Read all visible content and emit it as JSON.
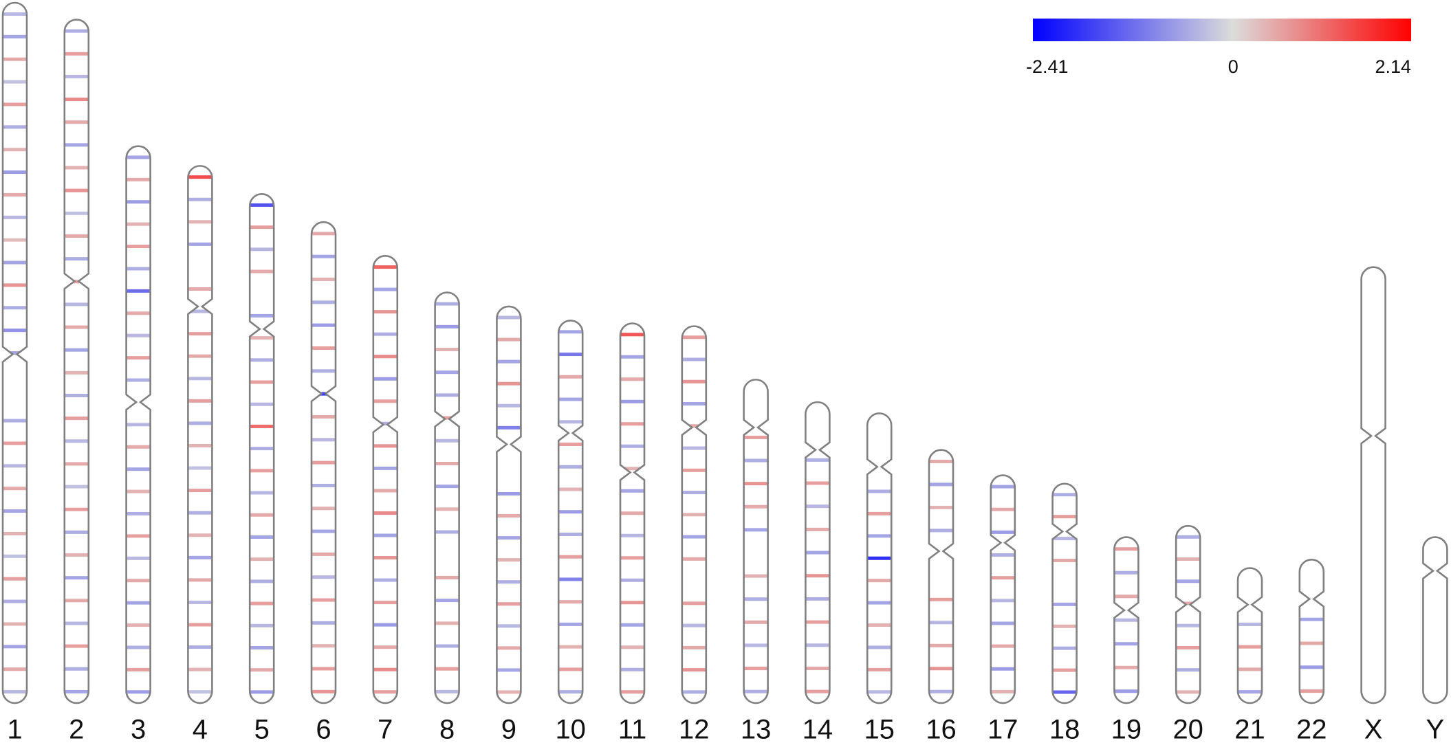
{
  "chart_data": {
    "type": "ideogram",
    "clim": [
      -2.41,
      2.14
    ],
    "cticks": [
      -2.41,
      0,
      2.14
    ],
    "colors": [
      "#0000ff",
      "#dcdcdc",
      "#ff0000"
    ],
    "chromosomes": [
      {
        "label": "1",
        "length": 249,
        "centromere": 125,
        "values": [
          -0.4,
          -0.6,
          0.5,
          -0.3,
          0.6,
          -0.5,
          0.4,
          -0.7,
          0.5,
          -0.4,
          0.3,
          -0.6,
          0.7,
          -0.5,
          -0.8,
          -0.6,
          null,
          null,
          -0.5,
          0.6,
          -0.4,
          0.5,
          -0.6,
          0.4,
          -0.3,
          0.6,
          -0.5,
          0.4,
          -0.6,
          0.5,
          -0.4
        ]
      },
      {
        "label": "2",
        "length": 243,
        "centromere": 93,
        "values": [
          -0.5,
          0.6,
          -0.4,
          0.8,
          0.5,
          -0.6,
          0.4,
          0.7,
          -0.3,
          0.5,
          -0.5,
          0.6,
          -0.4,
          0.5,
          -0.6,
          0.4,
          -0.5,
          0.6,
          -0.4,
          0.5,
          -0.3,
          0.6,
          -0.5,
          0.4,
          -0.6,
          0.5,
          -0.4,
          0.6,
          -0.5,
          -0.6
        ]
      },
      {
        "label": "3",
        "length": 198,
        "centromere": 91,
        "values": [
          -0.6,
          0.5,
          -0.7,
          0.4,
          0.6,
          -0.5,
          -1.2,
          0.5,
          -0.4,
          0.6,
          -0.5,
          null,
          -0.4,
          0.5,
          -0.6,
          0.4,
          -0.5,
          0.6,
          -0.4,
          0.5,
          -0.6,
          0.4,
          -0.5,
          0.6,
          -0.7
        ]
      },
      {
        "label": "4",
        "length": 191,
        "centromere": 50,
        "values": [
          1.4,
          -0.5,
          0.4,
          -0.6,
          null,
          0.5,
          -0.4,
          0.6,
          0.5,
          -0.4,
          0.6,
          -0.5,
          0.4,
          -0.3,
          0.6,
          -0.5,
          0.4,
          -0.6,
          0.5,
          -0.4,
          0.6,
          -0.5,
          0.4,
          -0.3
        ]
      },
      {
        "label": "5",
        "length": 181,
        "centromere": 48,
        "values": [
          -1.5,
          0.6,
          -0.4,
          0.5,
          null,
          -0.6,
          0.4,
          -0.5,
          0.6,
          -0.4,
          1.1,
          -0.5,
          0.6,
          -0.4,
          0.5,
          -0.6,
          0.4,
          -0.5,
          0.6,
          -0.4,
          -0.6,
          0.5,
          -0.7
        ]
      },
      {
        "label": "6",
        "length": 171,
        "centromere": 61,
        "values": [
          0.5,
          -0.6,
          0.4,
          -0.5,
          -0.7,
          0.6,
          -0.5,
          -1.8,
          0.5,
          -0.4,
          0.6,
          -0.5,
          0.4,
          -0.6,
          0.5,
          -0.4,
          0.6,
          -0.5,
          0.4,
          0.6,
          0.7
        ]
      },
      {
        "label": "7",
        "length": 159,
        "centromere": 60,
        "values": [
          1.2,
          -0.6,
          0.7,
          -0.5,
          0.8,
          -0.7,
          0.6,
          -0.5,
          0.7,
          -0.6,
          0.5,
          0.8,
          -0.6,
          0.7,
          -0.5,
          0.6,
          -0.7,
          0.5,
          0.8,
          0.6
        ]
      },
      {
        "label": "8",
        "length": 146,
        "centromere": 45,
        "values": [
          -0.5,
          -0.7,
          0.4,
          -0.6,
          -0.5,
          0.6,
          -0.4,
          0.5,
          -0.6,
          0.4,
          -0.5,
          null,
          0.5,
          -0.6,
          0.4,
          -0.5,
          0.6,
          -0.4
        ]
      },
      {
        "label": "9",
        "length": 141,
        "centromere": 49,
        "values": [
          -0.4,
          0.5,
          -0.6,
          0.7,
          -0.4,
          -1.0,
          null,
          null,
          -0.7,
          0.5,
          -0.6,
          0.4,
          -0.5,
          0.6,
          -0.4,
          0.5,
          -0.6,
          0.4
        ]
      },
      {
        "label": "10",
        "length": 136,
        "centromere": 40,
        "values": [
          -0.6,
          -1.1,
          0.5,
          -0.6,
          -0.4,
          0.6,
          -0.5,
          0.4,
          -0.7,
          -0.5,
          0.6,
          -1.0,
          0.5,
          -0.6,
          0.4,
          0.6,
          -0.5
        ]
      },
      {
        "label": "11",
        "length": 135,
        "centromere": 53,
        "values": [
          1.3,
          -0.6,
          0.5,
          -0.7,
          0.6,
          -0.5,
          0.4,
          -0.6,
          0.5,
          -0.4,
          0.6,
          -0.5,
          0.7,
          -0.6,
          0.4,
          -0.5,
          0.6
        ]
      },
      {
        "label": "12",
        "length": 134,
        "centromere": 36,
        "values": [
          0.6,
          -0.5,
          0.7,
          -0.6,
          0.5,
          -0.4,
          0.6,
          -0.5,
          0.4,
          -0.6,
          0.5,
          null,
          0.6,
          -0.4,
          0.5,
          0.7,
          -0.5
        ]
      },
      {
        "label": "13",
        "length": 115,
        "centromere": 17,
        "values": [
          null,
          null,
          0.6,
          -0.5,
          0.7,
          0.5,
          -0.6,
          null,
          0.4,
          -0.5,
          0.5,
          -0.4,
          0.6,
          -0.5
        ]
      },
      {
        "label": "14",
        "length": 107,
        "centromere": 17,
        "values": [
          null,
          null,
          -0.5,
          0.6,
          -0.4,
          0.5,
          -0.6,
          0.7,
          -0.5,
          0.6,
          -0.4,
          0.5,
          0.6
        ]
      },
      {
        "label": "15",
        "length": 103,
        "centromere": 19,
        "values": [
          null,
          null,
          null,
          -0.5,
          0.6,
          -0.6,
          -1.9,
          0.5,
          -0.6,
          0.4,
          -0.5,
          0.6,
          -0.4
        ]
      },
      {
        "label": "16",
        "length": 90,
        "centromere": 36,
        "values": [
          0.5,
          -0.6,
          0.4,
          -0.5,
          null,
          null,
          0.6,
          -0.4,
          0.5,
          0.7,
          -0.5
        ]
      },
      {
        "label": "17",
        "length": 81,
        "centromere": 24,
        "values": [
          -0.6,
          0.5,
          -0.7,
          -0.5,
          0.6,
          -0.4,
          -0.6,
          0.5,
          -0.7,
          0.4
        ]
      },
      {
        "label": "18",
        "length": 78,
        "centromere": 17,
        "values": [
          -0.5,
          0.6,
          -0.4,
          0.5,
          null,
          -0.6,
          0.4,
          -0.5,
          0.6,
          -1.3
        ]
      },
      {
        "label": "19",
        "length": 59,
        "centromere": 26,
        "values": [
          0.6,
          -0.5,
          0.5,
          -0.4,
          -0.6,
          0.5,
          -0.7
        ]
      },
      {
        "label": "20",
        "length": 63,
        "centromere": 28,
        "values": [
          -0.5,
          0.4,
          -0.6,
          0.5,
          -0.4,
          0.6,
          -0.5,
          0.4
        ]
      },
      {
        "label": "21",
        "length": 48,
        "centromere": 13,
        "values": [
          null,
          null,
          -0.4,
          0.6,
          0.5,
          -0.6
        ]
      },
      {
        "label": "22",
        "length": 51,
        "centromere": 14,
        "values": [
          null,
          null,
          -0.6,
          0.5,
          -0.7,
          0.6
        ]
      },
      {
        "label": "X",
        "length": 155,
        "centromere": 60,
        "values": []
      },
      {
        "label": "Y",
        "length": 59,
        "centromere": 12,
        "values": []
      }
    ]
  }
}
